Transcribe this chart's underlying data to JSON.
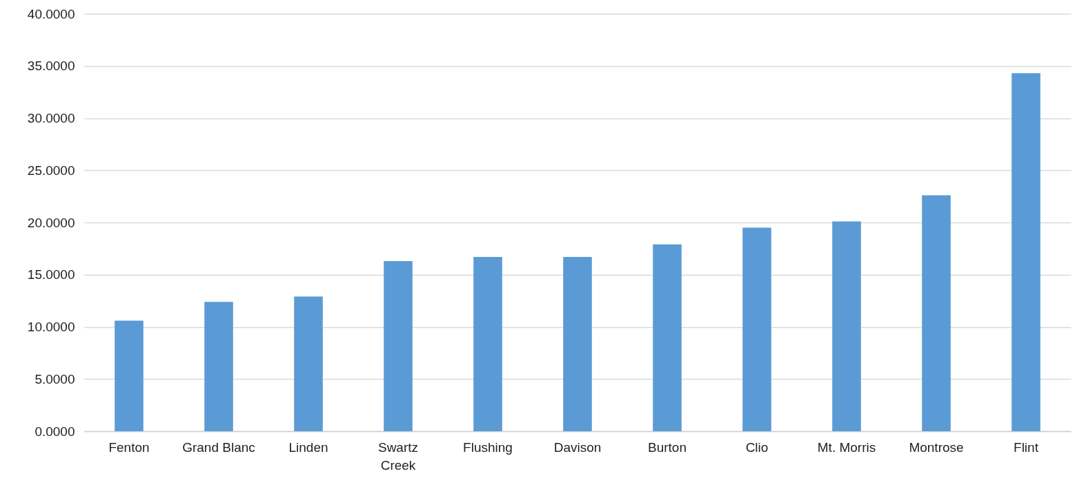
{
  "chart_data": {
    "type": "bar",
    "categories": [
      "Fenton",
      "Grand Blanc",
      "Linden",
      "Swartz Creek",
      "Flushing",
      "Davison",
      "Burton",
      "Clio",
      "Mt. Morris",
      "Montrose",
      "Flint"
    ],
    "values": [
      10.6,
      12.4,
      12.9,
      16.3,
      16.7,
      16.7,
      17.9,
      19.5,
      20.1,
      22.6,
      34.3
    ],
    "color": "#5b9bd5",
    "ylim": [
      0,
      40
    ],
    "yticks": [
      {
        "value": 0,
        "label": "0.0000"
      },
      {
        "value": 5,
        "label": "5.0000"
      },
      {
        "value": 10,
        "label": "10.0000"
      },
      {
        "value": 15,
        "label": "15.0000"
      },
      {
        "value": 20,
        "label": "20.0000"
      },
      {
        "value": 25,
        "label": "25.0000"
      },
      {
        "value": 30,
        "label": "30.0000"
      },
      {
        "value": 35,
        "label": "35.0000"
      },
      {
        "value": 40,
        "label": "40.0000"
      }
    ],
    "grid": "y"
  }
}
